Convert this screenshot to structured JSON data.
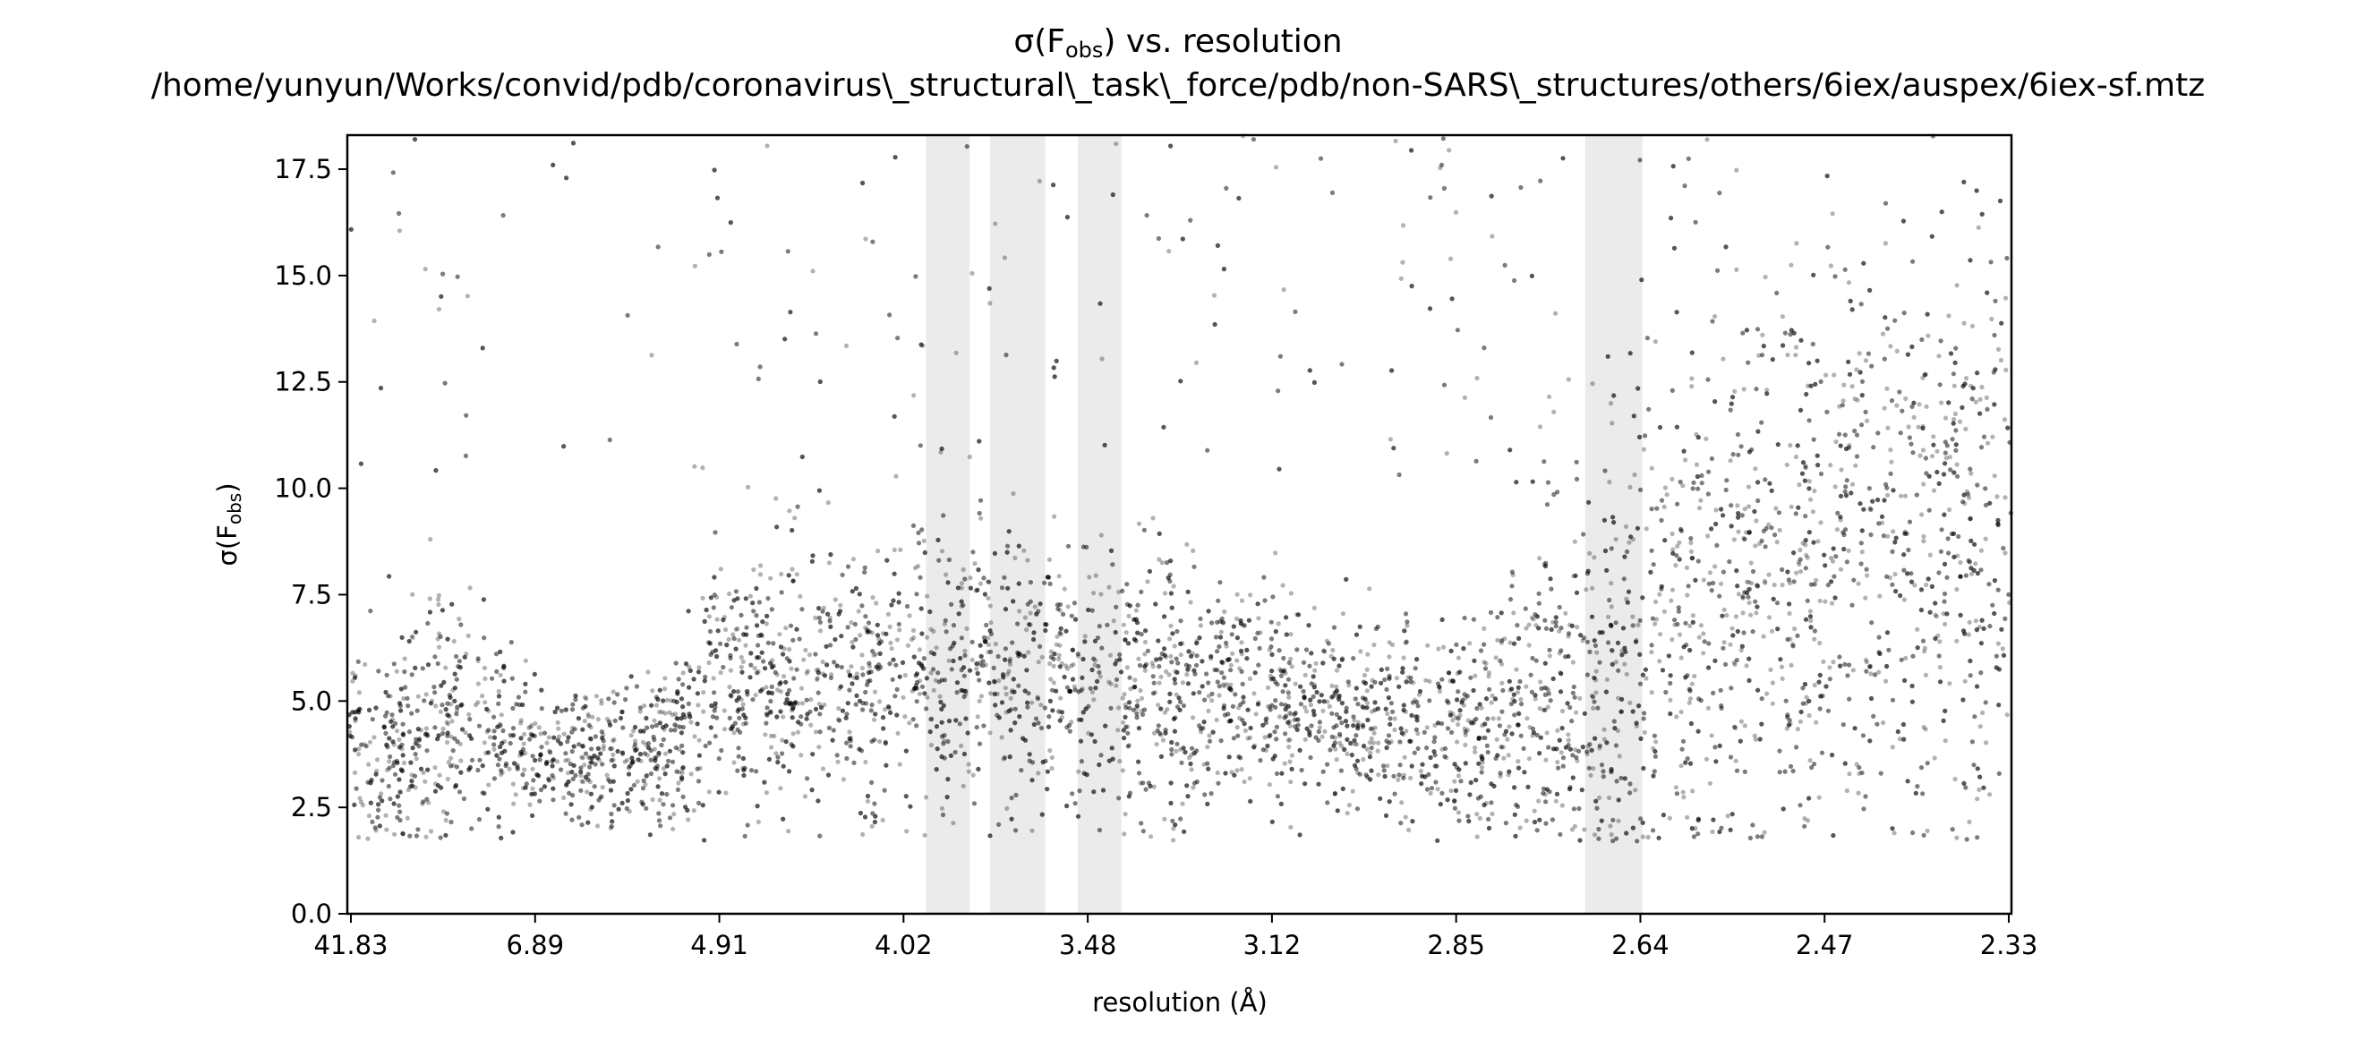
{
  "chart_data": {
    "type": "scatter",
    "title_lines": [
      "σ(Fobs) vs. resolution",
      "/home/yunyun/Works/convid/pdb/coronavirus\\_structural\\_task\\_force/pdb/non-SARS\\_structures/others/6iex/auspex/6iex-sf.mtz"
    ],
    "title_symbol": "σ(F",
    "title_subscript": "obs",
    "title_rest": ") vs. resolution",
    "title_path": "/home/yunyun/Works/convid/pdb/coronavirus\\_structural\\_task\\_force/pdb/non-SARS\\_structures/others/6iex/auspex/6iex-sf.mtz",
    "xlabel": "resolution (Å)",
    "ylabel": "σ(Fobs)",
    "ylabel_symbol": "σ(F",
    "ylabel_subscript": "obs",
    "ylabel_close": ")",
    "x_axis_scale": "1/d^2 (reciprocal resolution squared)",
    "xlim_d": [
      41.83,
      2.33
    ],
    "ylim": [
      0,
      18.3
    ],
    "x_ticks": [
      "41.83",
      "6.89",
      "4.91",
      "4.02",
      "3.48",
      "3.12",
      "2.85",
      "2.64",
      "2.47",
      "2.33"
    ],
    "y_ticks": [
      0.0,
      2.5,
      5.0,
      7.5,
      10.0,
      12.5,
      15.0,
      17.5
    ],
    "y_tick_labels": [
      "0.0",
      "2.5",
      "5.0",
      "7.5",
      "10.0",
      "12.5",
      "15.0",
      "17.5"
    ],
    "ice_ring_bands_d": [
      [
        3.94,
        3.8
      ],
      [
        3.74,
        3.59
      ],
      [
        3.51,
        3.41
      ],
      [
        2.7,
        2.64
      ]
    ],
    "point_color": "#000000",
    "point_alpha": 0.3,
    "band_color": "#ebebeb",
    "density_profile": [
      {
        "d": 41.83,
        "median": 3.5,
        "spread": 1.3
      },
      {
        "d": 8.5,
        "median": 4.7,
        "spread": 1.6
      },
      {
        "d": 6.89,
        "median": 3.7,
        "spread": 0.8
      },
      {
        "d": 5.4,
        "median": 3.8,
        "spread": 0.8
      },
      {
        "d": 4.91,
        "median": 5.3,
        "spread": 1.5
      },
      {
        "d": 4.02,
        "median": 5.7,
        "spread": 1.7
      },
      {
        "d": 3.48,
        "median": 5.5,
        "spread": 1.6
      },
      {
        "d": 3.12,
        "median": 5.0,
        "spread": 1.2
      },
      {
        "d": 2.85,
        "median": 4.2,
        "spread": 1.1
      },
      {
        "d": 2.64,
        "median": 6.0,
        "spread": 3.0
      },
      {
        "d": 2.47,
        "median": 8.5,
        "spread": 3.3
      },
      {
        "d": 2.33,
        "median": 9.0,
        "spread": 3.4
      }
    ],
    "outlier_range": [
      10,
      18.3
    ],
    "grid": false,
    "legend": "none"
  }
}
